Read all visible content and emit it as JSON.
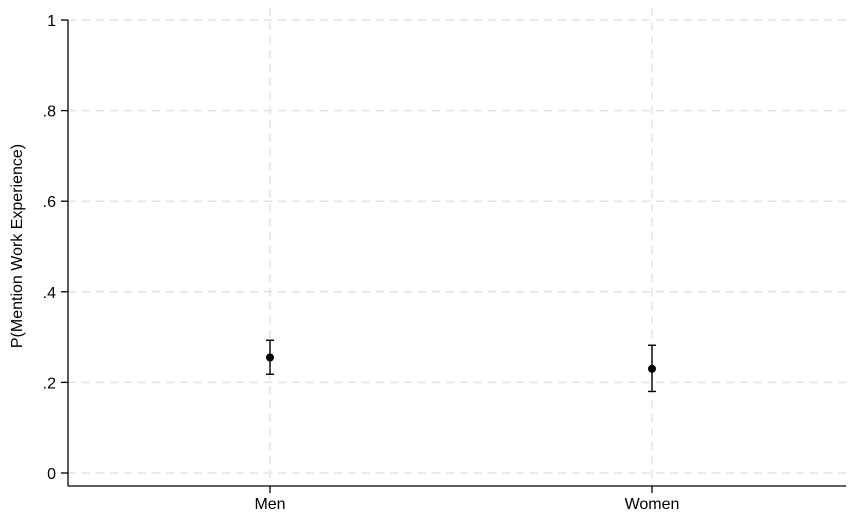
{
  "chart_data": {
    "type": "scatter",
    "title": "",
    "xlabel": "",
    "ylabel": "P(Mention Work Experience)",
    "categories": [
      "Men",
      "Women"
    ],
    "series": [
      {
        "values": [
          0.255,
          0.23
        ],
        "ci_low": [
          0.218,
          0.18
        ],
        "ci_high": [
          0.293,
          0.282
        ]
      }
    ],
    "ylim": [
      0,
      1
    ],
    "yticks": [
      0,
      0.2,
      0.4,
      0.6,
      0.8,
      1
    ],
    "ytick_labels": [
      "0",
      ".2",
      ".4",
      ".6",
      ".8",
      "1"
    ],
    "grid": true,
    "colors": {
      "grid": "#e3e3e3",
      "marker": "#000000"
    }
  }
}
